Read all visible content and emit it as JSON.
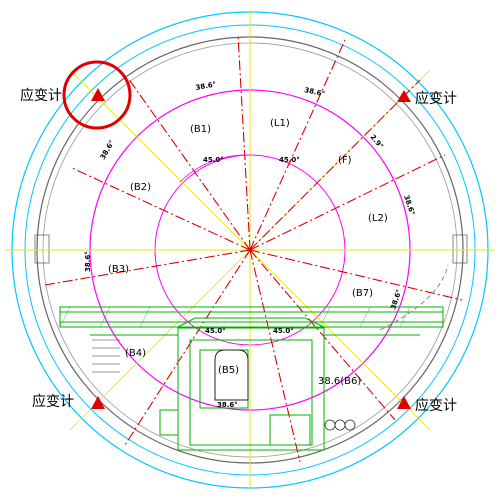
{
  "sensor_label": "应变计",
  "segments": {
    "b1": "(B1)",
    "l1": "(L1)",
    "f": "(F)",
    "b2": "(B2)",
    "l2": "(L2)",
    "b3": "(B3)",
    "b7": "(B7)",
    "b4": "(B4)",
    "b5": "(B5)",
    "b6": "38.6(B6)"
  },
  "angles": {
    "a_top_left": "38.6°",
    "a_top_right": "38.6°",
    "a_left_upper": "38.6°",
    "a_right_upper": "38.6°",
    "a_right_lower": "38.6°",
    "a_left_lower": "38.6°",
    "a_bottom": "38.6°",
    "a_small": "2.9°",
    "a_inner_1": "45.0°",
    "a_inner_2": "45.0°",
    "a_inner_3": "45.0°",
    "a_inner_4": "45.0°"
  },
  "colors": {
    "outer_ring": "#00c8ff",
    "segment_ring": "#ff00ff",
    "radial_dash": "#e00000",
    "axis": "#e8e800",
    "structure": "#00b000",
    "marker": "#e00000",
    "highlight": "#e00000"
  }
}
